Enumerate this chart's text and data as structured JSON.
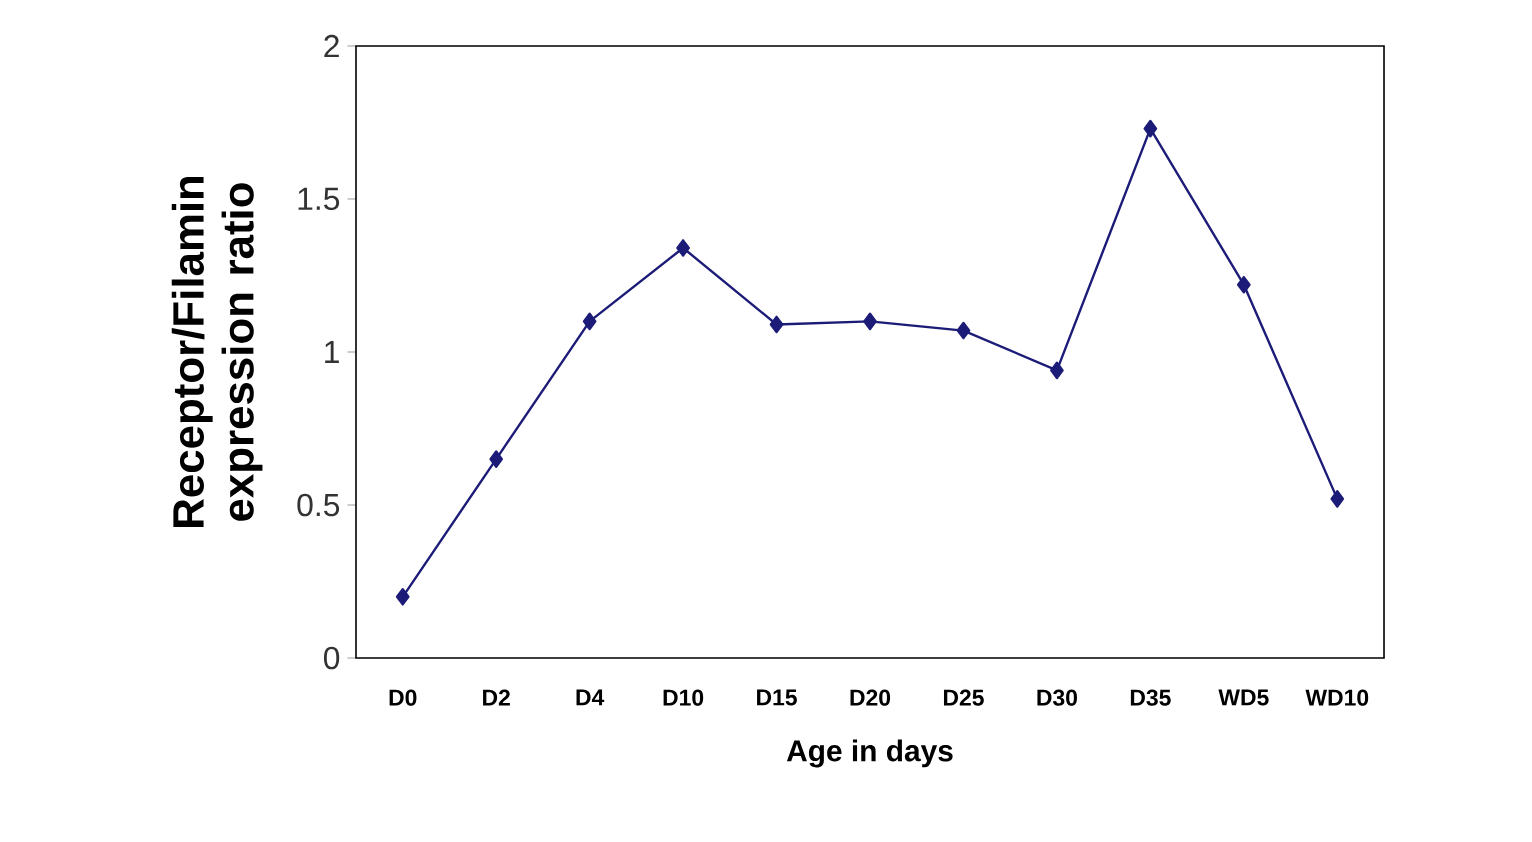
{
  "chart_data": {
    "type": "line",
    "xlabel": "Age in days",
    "ylabel": "Receptor/Filamin expression ratio",
    "categories": [
      "D0",
      "D2",
      "D4",
      "D10",
      "D15",
      "D20",
      "D25",
      "D30",
      "D35",
      "WD5",
      "WD10"
    ],
    "series": [
      {
        "color": "#1c1c78",
        "values": [
          0.2,
          0.65,
          1.1,
          1.34,
          1.09,
          1.1,
          1.07,
          0.94,
          1.73,
          1.22,
          0.52
        ]
      }
    ],
    "ylim": [
      0,
      2
    ],
    "yticks": [
      0,
      0.5,
      1,
      1.5,
      2
    ],
    "grid": false,
    "marker": "diamond",
    "line_style": "solid"
  }
}
